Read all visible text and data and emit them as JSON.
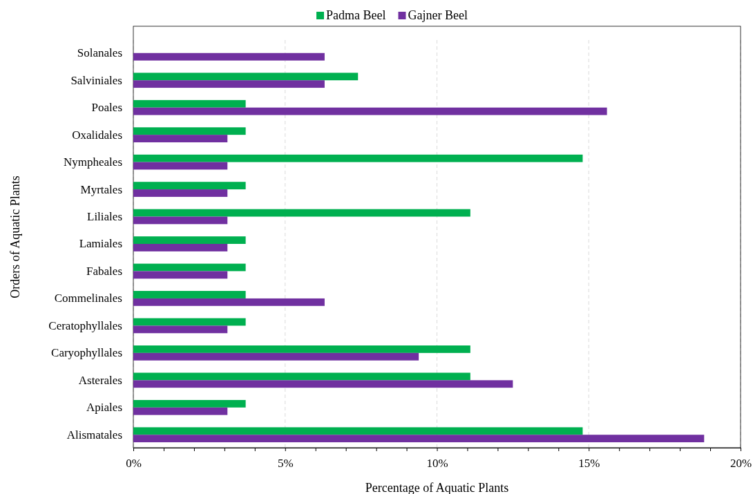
{
  "chart_data": {
    "type": "bar",
    "orientation": "horizontal",
    "xlabel": "Percentage of Aquatic Plants",
    "ylabel": "Orders of Aquatic Plants",
    "categories": [
      "Solanales",
      "Salviniales",
      "Poales",
      "Oxalidales",
      "Nympheales",
      "Myrtales",
      "Liliales",
      "Lamiales",
      "Fabales",
      "Commelinales",
      "Ceratophyllales",
      "Caryophyllales",
      "Asterales",
      "Apiales",
      "Alismatales"
    ],
    "series": [
      {
        "name": "Padma Beel",
        "color": "#00b050",
        "values": [
          null,
          7.4,
          3.7,
          3.7,
          14.8,
          3.7,
          11.1,
          3.7,
          3.7,
          3.7,
          3.7,
          11.1,
          11.1,
          3.7,
          14.8
        ]
      },
      {
        "name": "Gajner Beel",
        "color": "#7030a0",
        "values": [
          6.3,
          6.3,
          15.6,
          3.1,
          3.1,
          3.1,
          3.1,
          3.1,
          3.1,
          6.3,
          3.1,
          9.4,
          12.5,
          3.1,
          18.8
        ]
      }
    ],
    "xlim": [
      0,
      20
    ],
    "xticks": [
      {
        "value": 0,
        "label": "0%"
      },
      {
        "value": 1,
        "label": null
      },
      {
        "value": 2,
        "label": null
      },
      {
        "value": 3,
        "label": null
      },
      {
        "value": 4,
        "label": null
      },
      {
        "value": 5,
        "label": "5%"
      },
      {
        "value": 6,
        "label": null
      },
      {
        "value": 7,
        "label": null
      },
      {
        "value": 8,
        "label": null
      },
      {
        "value": 9,
        "label": null
      },
      {
        "value": 10,
        "label": "10%"
      },
      {
        "value": 11,
        "label": null
      },
      {
        "value": 12,
        "label": null
      },
      {
        "value": 13,
        "label": null
      },
      {
        "value": 14,
        "label": null
      },
      {
        "value": 15,
        "label": "15%"
      },
      {
        "value": 16,
        "label": null
      },
      {
        "value": 17,
        "label": null
      },
      {
        "value": 18,
        "label": null
      },
      {
        "value": 19,
        "label": null
      },
      {
        "value": 20,
        "label": "20%"
      }
    ],
    "grid": "x",
    "legend": "top"
  }
}
